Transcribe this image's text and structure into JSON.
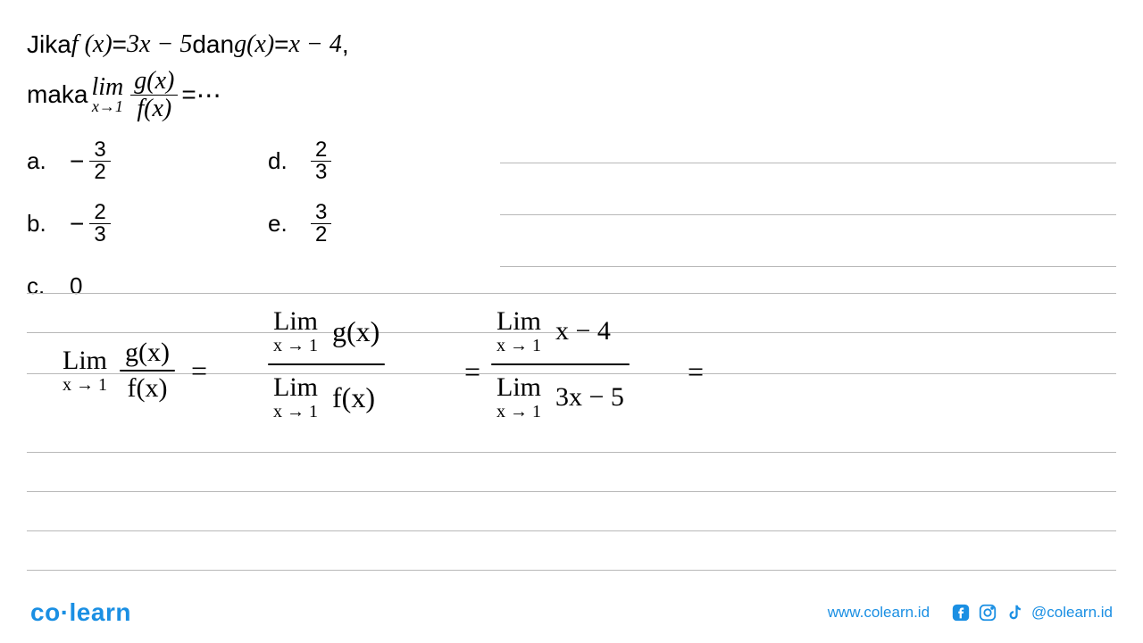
{
  "question": {
    "line1_prefix": "Jika ",
    "fx_lhs": "f (x)",
    "eq1": " = ",
    "fx_rhs": "3x − 5",
    "and": " dan ",
    "gx_lhs": "g(x)",
    "eq2": " = ",
    "gx_rhs": "x − 4",
    "comma": ",",
    "line2_prefix": "maka ",
    "lim_label": "lim",
    "lim_sub": "x→1",
    "frac_num": "g(x)",
    "frac_den": "f(x)",
    "eq3": " = ",
    "dots": "⋯"
  },
  "options": {
    "a": {
      "label": "a.",
      "neg": "−",
      "num": "3",
      "den": "2"
    },
    "b": {
      "label": "b.",
      "neg": "−",
      "num": "2",
      "den": "3"
    },
    "c": {
      "label": "c.",
      "value": "0"
    },
    "d": {
      "label": "d.",
      "num": "2",
      "den": "3"
    },
    "e": {
      "label": "e.",
      "num": "3",
      "den": "2"
    }
  },
  "handwriting": {
    "lim": "Lim",
    "xto1": "x → 1",
    "gx": "g(x)",
    "fx": "f(x)",
    "eq": "=",
    "xminus4": "x − 4",
    "threexminus5": "3x − 5"
  },
  "notebook_lines": {
    "short_tops": [
      182,
      240,
      298
    ],
    "full_tops": [
      328,
      372,
      418,
      506,
      550,
      594,
      638
    ],
    "line_color": "#b8b8b8"
  },
  "footer": {
    "logo_co": "co",
    "logo_learn": "learn",
    "url": "www.colearn.id",
    "handle": "@colearn.id",
    "brand_color": "#1a8fe3"
  }
}
